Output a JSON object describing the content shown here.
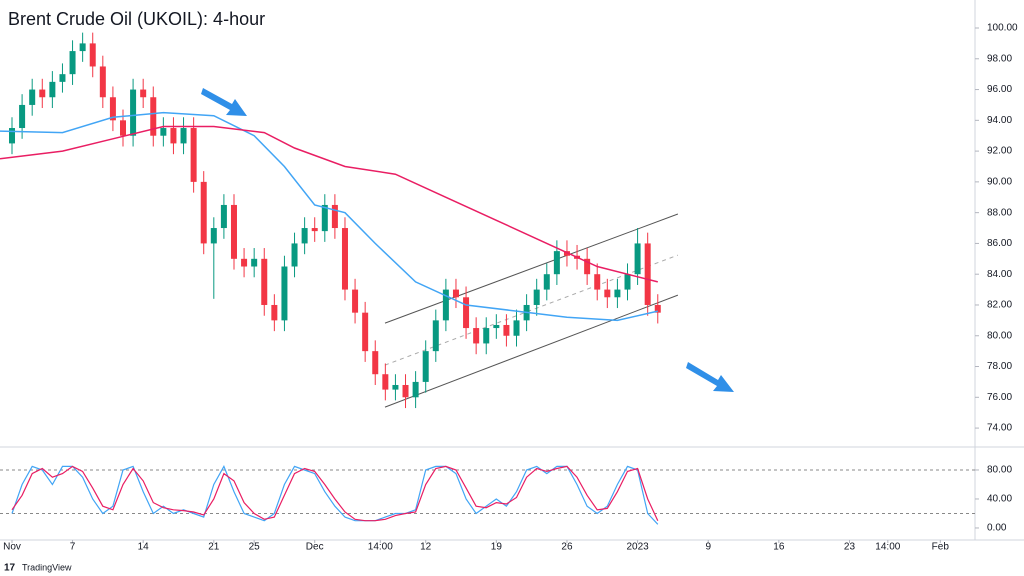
{
  "chart_data": [
    {
      "type": "candlestick",
      "title": "Brent Crude Oil (UKOIL): 4-hour",
      "x": [
        0,
        1,
        2,
        3,
        4,
        5,
        6,
        7,
        8,
        9,
        10,
        11,
        12,
        13,
        14,
        15,
        16,
        17,
        18,
        19,
        20,
        21,
        22,
        23,
        24,
        25,
        26,
        27,
        28,
        29,
        30,
        31,
        32,
        33,
        34,
        35,
        36,
        37,
        38,
        39,
        40,
        41,
        42,
        43,
        44,
        45,
        46,
        47,
        48,
        49,
        50,
        51,
        52,
        53,
        54,
        55,
        56,
        57,
        58,
        59,
        60,
        61,
        62,
        63,
        64
      ],
      "open": [
        92.5,
        93.5,
        95,
        96,
        95.5,
        96.5,
        97,
        98.5,
        99,
        97.5,
        95.5,
        94,
        93,
        96,
        95.5,
        93,
        93.5,
        92.5,
        93.5,
        90,
        86,
        87,
        88.5,
        85,
        84.5,
        85,
        82,
        81,
        84.5,
        86,
        87,
        86.8,
        88.5,
        87,
        83,
        81.5,
        79,
        77.5,
        76.5,
        76.8,
        76,
        77,
        79,
        81,
        83,
        82.5,
        80.5,
        79.5,
        80.5,
        80.7,
        80,
        81,
        82,
        83,
        84,
        85.5,
        85.2,
        85,
        84,
        83,
        82.5,
        83,
        84,
        86,
        82
      ],
      "high": [
        94.2,
        95.7,
        96.7,
        96.7,
        97.2,
        97.7,
        99.2,
        99.7,
        99.7,
        98.2,
        96.2,
        94.7,
        96.7,
        96.7,
        96.2,
        94.2,
        94.2,
        94.2,
        94.2,
        90.7,
        87.7,
        89.2,
        89.2,
        85.7,
        85.7,
        85.7,
        82.7,
        85.2,
        86.7,
        87.7,
        87.7,
        89.2,
        89.2,
        87.7,
        83.7,
        82.2,
        79.7,
        78.2,
        77.5,
        77.5,
        77.7,
        79.7,
        81.7,
        83.7,
        83.7,
        83.2,
        81.2,
        81.2,
        81.4,
        81.4,
        81.7,
        82.7,
        83.7,
        84.7,
        86.2,
        86.2,
        85.9,
        85.7,
        84.7,
        83.7,
        83.7,
        84.7,
        87,
        86.7,
        82.7
      ],
      "low": [
        91.8,
        92.8,
        94.3,
        94.8,
        94.8,
        95.8,
        96.3,
        97.8,
        96.8,
        94.8,
        93.3,
        92.3,
        92.3,
        94.8,
        92.3,
        92.3,
        91.8,
        91.8,
        89.3,
        85.3,
        82.4,
        86.3,
        84.3,
        83.8,
        83.8,
        81.3,
        80.3,
        80.3,
        83.8,
        85.3,
        86.1,
        86.1,
        86.3,
        82.3,
        80.8,
        78.3,
        76.8,
        75.8,
        75.8,
        75.3,
        75.3,
        76.3,
        78.3,
        80.3,
        81.8,
        79.8,
        78.8,
        78.8,
        79.8,
        79.3,
        79.3,
        80.3,
        81.3,
        82.3,
        83.3,
        84.5,
        84.3,
        83.3,
        82.3,
        81.8,
        81.8,
        82.3,
        83.3,
        81.3,
        80.8
      ],
      "close": [
        93.5,
        95,
        96,
        95.5,
        96.5,
        97,
        98.5,
        99,
        97.5,
        95.5,
        94,
        93,
        96,
        95.5,
        93,
        93.5,
        92.5,
        93.5,
        90,
        86,
        87,
        88.5,
        85,
        84.5,
        85,
        82,
        81,
        84.5,
        86,
        87,
        86.8,
        88.5,
        87,
        83,
        81.5,
        79,
        77.5,
        76.5,
        76.8,
        76,
        77,
        79,
        81,
        83,
        82.5,
        80.5,
        79.5,
        80.5,
        80.7,
        80,
        81,
        82,
        83,
        84,
        85.5,
        85.2,
        85,
        84,
        83,
        82.5,
        83,
        84,
        86,
        82,
        81.5
      ],
      "up_color": "#089981",
      "down_color": "#f23645",
      "lines": [
        {
          "color": "#42a5f5",
          "x": [
            -1.19,
            5,
            10,
            15,
            20,
            24,
            27,
            30,
            33,
            36,
            40,
            45,
            50,
            55,
            60,
            64
          ],
          "values": [
            93.3,
            93.2,
            94.2,
            94.5,
            94.3,
            93,
            91,
            88.5,
            88,
            86,
            83.5,
            82,
            81.6,
            81.2,
            81,
            81.6
          ]
        },
        {
          "color": "#e91e63",
          "x": [
            -1.19,
            5,
            10,
            15,
            20,
            25,
            28,
            33,
            38,
            43,
            48,
            53,
            58,
            64
          ],
          "values": [
            91.5,
            92,
            92.8,
            93.6,
            93.6,
            93.2,
            92.2,
            91,
            90.5,
            89,
            87.5,
            86,
            84.5,
            83.5
          ]
        }
      ],
      "trendlines": [
        {
          "color": "#555555",
          "dashed": false,
          "x": [
            36.97,
            66
          ],
          "values": [
            75.36,
            82.64
          ]
        },
        {
          "color": "#555555",
          "dashed": false,
          "x": [
            36.97,
            66
          ],
          "values": [
            80.82,
            87.91
          ]
        },
        {
          "color": "#aaaaaa",
          "dashed": true,
          "x": [
            36.97,
            66
          ],
          "values": [
            78.09,
            85.24
          ]
        }
      ],
      "xlim": [
        -1.19,
        95.44
      ],
      "ylim": [
        72.77,
        101.82
      ],
      "yticks": [
        {
          "value": 74,
          "label": "74.00"
        },
        {
          "value": 76,
          "label": "76.00"
        },
        {
          "value": 78,
          "label": "78.00"
        },
        {
          "value": 80,
          "label": "80.00"
        },
        {
          "value": 82,
          "label": "82.00"
        },
        {
          "value": 84,
          "label": "84.00"
        },
        {
          "value": 86,
          "label": "86.00"
        },
        {
          "value": 88,
          "label": "88.00"
        },
        {
          "value": 90,
          "label": "90.00"
        },
        {
          "value": 92,
          "label": "92.00"
        },
        {
          "value": 94,
          "label": "94.00"
        },
        {
          "value": 96,
          "label": "96.00"
        },
        {
          "value": 98,
          "label": "98.00"
        },
        {
          "value": 100,
          "label": "100.00"
        }
      ]
    },
    {
      "type": "line",
      "x": [
        0,
        1,
        2,
        3,
        4,
        5,
        6,
        7,
        8,
        9,
        10,
        11,
        12,
        13,
        14,
        15,
        16,
        17,
        18,
        19,
        20,
        21,
        22,
        23,
        24,
        25,
        26,
        27,
        28,
        29,
        30,
        31,
        32,
        33,
        34,
        35,
        36,
        37,
        38,
        39,
        40,
        41,
        42,
        43,
        44,
        45,
        46,
        47,
        48,
        49,
        50,
        51,
        52,
        53,
        54,
        55,
        56,
        57,
        58,
        59,
        60,
        61,
        62,
        63,
        64
      ],
      "series": [
        {
          "color": "#42a5f5",
          "values": [
            20,
            60,
            85,
            80,
            60,
            85,
            85,
            70,
            40,
            20,
            30,
            80,
            85,
            50,
            20,
            30,
            20,
            25,
            20,
            15,
            60,
            85,
            50,
            20,
            15,
            10,
            20,
            60,
            85,
            80,
            75,
            50,
            30,
            15,
            10,
            10,
            10,
            15,
            20,
            20,
            25,
            80,
            85,
            85,
            75,
            40,
            20,
            30,
            40,
            30,
            50,
            80,
            85,
            75,
            85,
            85,
            60,
            30,
            20,
            30,
            60,
            85,
            80,
            20,
            5
          ]
        },
        {
          "color": "#e91e63",
          "values": [
            25,
            45,
            75,
            82,
            70,
            75,
            85,
            78,
            55,
            30,
            25,
            60,
            82,
            65,
            35,
            28,
            25,
            24,
            22,
            18,
            40,
            75,
            65,
            35,
            20,
            12,
            15,
            45,
            75,
            82,
            78,
            60,
            40,
            22,
            12,
            10,
            10,
            12,
            17,
            20,
            22,
            60,
            82,
            85,
            80,
            55,
            30,
            28,
            35,
            33,
            42,
            70,
            82,
            78,
            82,
            85,
            70,
            45,
            25,
            27,
            50,
            78,
            82,
            40,
            10
          ]
        }
      ],
      "levels": [
        80,
        20
      ],
      "xlim": [
        -1.19,
        95.44
      ],
      "ylim": [
        -16.6,
        111.7
      ],
      "yticks": [
        {
          "value": 0,
          "label": "0.00"
        },
        {
          "value": 40,
          "label": "40.00"
        },
        {
          "value": 80,
          "label": "80.00"
        }
      ],
      "xticks": [
        {
          "value": 0,
          "label": "Nov"
        },
        {
          "value": 6,
          "label": "7"
        },
        {
          "value": 13,
          "label": "14"
        },
        {
          "value": 20,
          "label": "21"
        },
        {
          "value": 24,
          "label": "25"
        },
        {
          "value": 30,
          "label": "Dec"
        },
        {
          "value": 36.5,
          "label": "14:00"
        },
        {
          "value": 41,
          "label": "12"
        },
        {
          "value": 48,
          "label": "19"
        },
        {
          "value": 55,
          "label": "26"
        },
        {
          "value": 62,
          "label": "2023"
        },
        {
          "value": 69,
          "label": "9"
        },
        {
          "value": 76,
          "label": "16"
        },
        {
          "value": 83,
          "label": "23"
        },
        {
          "value": 86.8,
          "label": "14:00"
        },
        {
          "value": 92,
          "label": "Feb"
        }
      ]
    }
  ],
  "branding": "TradingView"
}
